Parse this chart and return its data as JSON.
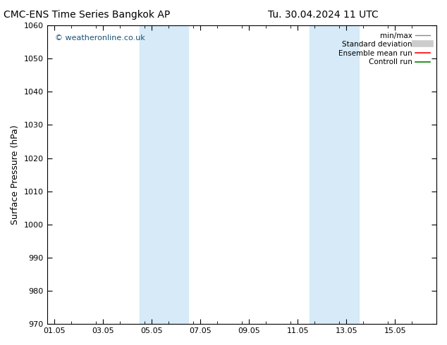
{
  "title_left": "CMC-ENS Time Series Bangkok AP",
  "title_right": "Tu. 30.04.2024 11 UTC",
  "ylabel": "Surface Pressure (hPa)",
  "ylim": [
    970,
    1060
  ],
  "yticks": [
    970,
    980,
    990,
    1000,
    1010,
    1020,
    1030,
    1040,
    1050,
    1060
  ],
  "xlabels": [
    "01.05",
    "03.05",
    "05.05",
    "07.05",
    "09.05",
    "11.05",
    "13.05",
    "15.05"
  ],
  "x_major_ticks": [
    0,
    2,
    4,
    6,
    8,
    10,
    12,
    14
  ],
  "x_minor_ticks_step": 1,
  "xlim": [
    -0.3,
    15.3
  ],
  "shaded_bands": [
    {
      "x_start": 3.5,
      "x_end": 5.5
    },
    {
      "x_start": 10.5,
      "x_end": 12.5
    }
  ],
  "shade_color": "#d6eaf8",
  "background_color": "#ffffff",
  "watermark": "© weatheronline.co.uk",
  "watermark_color": "#1a5276",
  "legend_items": [
    {
      "label": "min/max",
      "color": "#888888",
      "lw": 1.0
    },
    {
      "label": "Standard deviation",
      "color": "#cccccc",
      "lw": 7
    },
    {
      "label": "Ensemble mean run",
      "color": "#ff0000",
      "lw": 1.2
    },
    {
      "label": "Controll run",
      "color": "#008000",
      "lw": 1.2
    }
  ],
  "title_fontsize": 10,
  "tick_fontsize": 8,
  "ylabel_fontsize": 9,
  "watermark_fontsize": 8,
  "figsize": [
    6.34,
    4.9
  ],
  "dpi": 100
}
